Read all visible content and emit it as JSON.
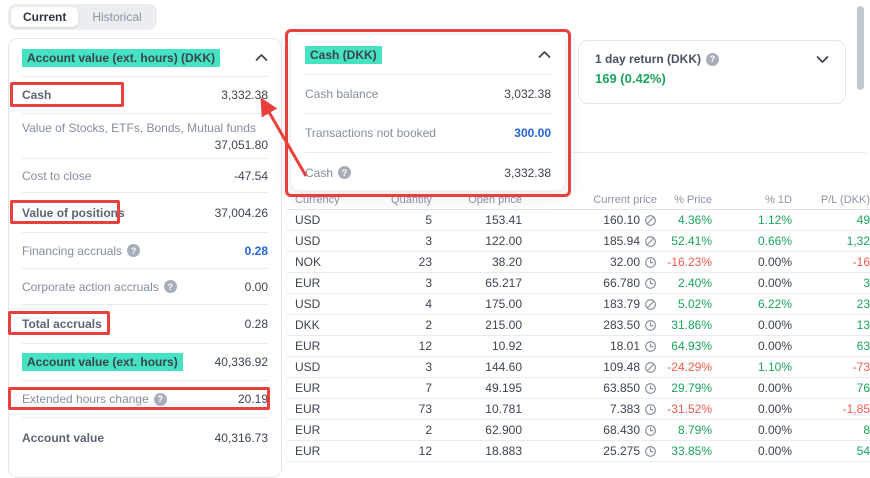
{
  "colors": {
    "highlight": "#45e3c2",
    "annotation": "#e8403c",
    "green": "#1ba55d",
    "red": "#f25c51",
    "blue": "#2563d9"
  },
  "tabs": {
    "items": [
      {
        "label": "Current",
        "active": true
      },
      {
        "label": "Historical",
        "active": false
      }
    ]
  },
  "account_panel": {
    "title": "Account value (ext. hours) (DKK)",
    "rows": [
      {
        "label": "Cash",
        "value": "3,332.38",
        "bold": true,
        "height": 37
      },
      {
        "label": "Value of Stocks, ETFs, Bonds, Mutual funds",
        "value": "37,051.80",
        "stacked": true,
        "height": 45
      },
      {
        "label": "Cost to close",
        "value": "-47.54",
        "height": 34
      },
      {
        "label": "Value of positions",
        "value": "37,004.26",
        "bold": true,
        "height": 40
      },
      {
        "label": "Financing accruals",
        "help": true,
        "value": "0.28",
        "value_style": "blue",
        "height": 36
      },
      {
        "label": "Corporate action accruals",
        "help": true,
        "value": "0.00",
        "height": 36
      },
      {
        "label": "Total accruals",
        "value": "0.28",
        "bold": true,
        "height": 39
      },
      {
        "label": "Account value (ext. hours)",
        "value": "40,336.92",
        "bold": true,
        "highlight": true,
        "height": 37
      },
      {
        "label": "Extended hours change",
        "help": true,
        "value": "20.19",
        "height": 37
      },
      {
        "label": "Account value",
        "value": "40,316.73",
        "bold": true,
        "height": 39
      }
    ]
  },
  "cash_popup": {
    "title": "Cash (DKK)",
    "rows": [
      {
        "label": "Cash balance",
        "value": "3,032.38"
      },
      {
        "label": "Transactions not booked",
        "value": "300.00",
        "value_style": "blue"
      },
      {
        "label": "Cash",
        "help": true,
        "value": "3,332.38"
      }
    ]
  },
  "day_return_card": {
    "title": "1 day return (DKK)",
    "value": "169 (0.42%)"
  },
  "positions_table": {
    "columns": [
      "Currency",
      "Quantity",
      "Open price",
      "Current price",
      "% Price",
      "% 1D",
      "P/L (DKK)"
    ],
    "rows": [
      {
        "currency": "USD",
        "quantity": "5",
        "open_price": "153.41",
        "current_price": "160.10",
        "price_icon": "halted",
        "pct_price": "4.36%",
        "pct_price_dir": "up",
        "pct_1d": "1.12%",
        "pct_1d_dir": "up",
        "pl": "49",
        "pl_dir": "up"
      },
      {
        "currency": "USD",
        "quantity": "3",
        "open_price": "122.00",
        "current_price": "185.94",
        "price_icon": "halted",
        "pct_price": "52.41%",
        "pct_price_dir": "up",
        "pct_1d": "0.66%",
        "pct_1d_dir": "up",
        "pl": "1,32",
        "pl_dir": "up"
      },
      {
        "currency": "NOK",
        "quantity": "23",
        "open_price": "38.20",
        "current_price": "32.00",
        "price_icon": "delayed",
        "pct_price": "-16.23%",
        "pct_price_dir": "down",
        "pct_1d": "0.00%",
        "pct_1d_dir": "flat",
        "pl": "-16",
        "pl_dir": "down"
      },
      {
        "currency": "EUR",
        "quantity": "3",
        "open_price": "65.217",
        "current_price": "66.780",
        "price_icon": "delayed",
        "pct_price": "2.40%",
        "pct_price_dir": "up",
        "pct_1d": "0.00%",
        "pct_1d_dir": "flat",
        "pl": "3",
        "pl_dir": "up"
      },
      {
        "currency": "USD",
        "quantity": "4",
        "open_price": "175.00",
        "current_price": "183.79",
        "price_icon": "halted",
        "pct_price": "5.02%",
        "pct_price_dir": "up",
        "pct_1d": "6.22%",
        "pct_1d_dir": "up",
        "pl": "23",
        "pl_dir": "up"
      },
      {
        "currency": "DKK",
        "quantity": "2",
        "open_price": "215.00",
        "current_price": "283.50",
        "price_icon": "delayed",
        "pct_price": "31.86%",
        "pct_price_dir": "up",
        "pct_1d": "0.00%",
        "pct_1d_dir": "flat",
        "pl": "13",
        "pl_dir": "up"
      },
      {
        "currency": "EUR",
        "quantity": "12",
        "open_price": "10.92",
        "current_price": "18.01",
        "price_icon": "delayed",
        "pct_price": "64.93%",
        "pct_price_dir": "up",
        "pct_1d": "0.00%",
        "pct_1d_dir": "flat",
        "pl": "63",
        "pl_dir": "up"
      },
      {
        "currency": "USD",
        "quantity": "3",
        "open_price": "144.60",
        "current_price": "109.48",
        "price_icon": "halted",
        "pct_price": "-24.29%",
        "pct_price_dir": "down",
        "pct_1d": "1.10%",
        "pct_1d_dir": "up",
        "pl": "-73",
        "pl_dir": "down"
      },
      {
        "currency": "EUR",
        "quantity": "7",
        "open_price": "49.195",
        "current_price": "63.850",
        "price_icon": "delayed",
        "pct_price": "29.79%",
        "pct_price_dir": "up",
        "pct_1d": "0.00%",
        "pct_1d_dir": "flat",
        "pl": "76",
        "pl_dir": "up"
      },
      {
        "currency": "EUR",
        "quantity": "73",
        "open_price": "10.781",
        "current_price": "7.383",
        "price_icon": "delayed",
        "pct_price": "-31.52%",
        "pct_price_dir": "down",
        "pct_1d": "0.00%",
        "pct_1d_dir": "flat",
        "pl": "-1,85",
        "pl_dir": "down"
      },
      {
        "currency": "EUR",
        "quantity": "2",
        "open_price": "62.900",
        "current_price": "68.430",
        "price_icon": "delayed",
        "pct_price": "8.79%",
        "pct_price_dir": "up",
        "pct_1d": "0.00%",
        "pct_1d_dir": "flat",
        "pl": "8",
        "pl_dir": "up"
      },
      {
        "currency": "EUR",
        "quantity": "12",
        "open_price": "18.883",
        "current_price": "25.275",
        "price_icon": "delayed",
        "pct_price": "33.85%",
        "pct_price_dir": "up",
        "pct_1d": "0.00%",
        "pct_1d_dir": "flat",
        "pl": "54",
        "pl_dir": "up"
      }
    ]
  }
}
